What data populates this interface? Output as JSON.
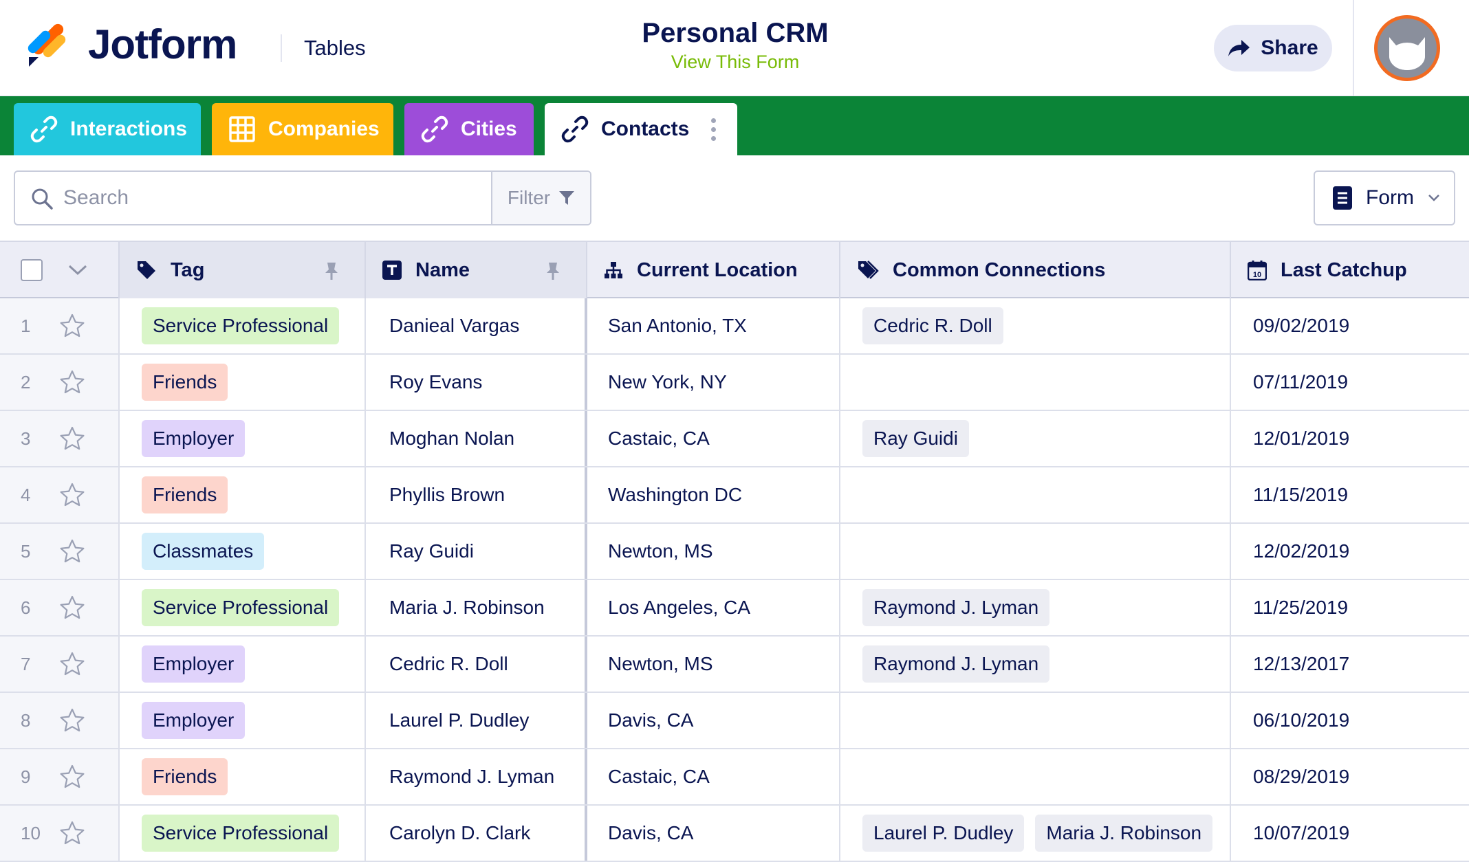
{
  "header": {
    "brand": "Jotform",
    "section": "Tables",
    "title": "Personal CRM",
    "view_link": "View This Form",
    "share_label": "Share"
  },
  "tabs": [
    {
      "label": "Interactions",
      "color": "#22c7dd",
      "icon": "link-icon"
    },
    {
      "label": "Companies",
      "color": "#ffb50a",
      "icon": "grid-icon"
    },
    {
      "label": "Cities",
      "color": "#9d4dd9",
      "icon": "link-icon"
    },
    {
      "label": "Contacts",
      "color": "#ffffff",
      "icon": "link-icon",
      "active": true
    }
  ],
  "toolbar": {
    "search_placeholder": "Search",
    "filter_label": "Filter",
    "form_label": "Form"
  },
  "columns": [
    {
      "label": "Tag",
      "icon": "tag-icon"
    },
    {
      "label": "Name",
      "icon": "text-type-icon"
    },
    {
      "label": "Current Location",
      "icon": "hierarchy-icon"
    },
    {
      "label": "Common Connections",
      "icon": "tags-icon"
    },
    {
      "label": "Last Catchup",
      "icon": "calendar-icon"
    }
  ],
  "calendar_icon_day": "10",
  "tag_colors": {
    "Service Professional": "#d9f5c8",
    "Friends": "#fdd5cc",
    "Employer": "#e0d3fb",
    "Classmates": "#d3eefb"
  },
  "rows": [
    {
      "num": "1",
      "tag": "Service Professional",
      "name": "Danieal Vargas",
      "location": "San Antonio, TX",
      "connections": [
        "Cedric R. Doll"
      ],
      "date": "09/02/2019"
    },
    {
      "num": "2",
      "tag": "Friends",
      "name": "Roy Evans",
      "location": "New York, NY",
      "connections": [],
      "date": "07/11/2019"
    },
    {
      "num": "3",
      "tag": "Employer",
      "name": "Moghan Nolan",
      "location": "Castaic, CA",
      "connections": [
        "Ray Guidi"
      ],
      "date": "12/01/2019"
    },
    {
      "num": "4",
      "tag": "Friends",
      "name": "Phyllis Brown",
      "location": "Washington DC",
      "connections": [],
      "date": "11/15/2019"
    },
    {
      "num": "5",
      "tag": "Classmates",
      "name": "Ray Guidi",
      "location": "Newton, MS",
      "connections": [],
      "date": "12/02/2019"
    },
    {
      "num": "6",
      "tag": "Service Professional",
      "name": "Maria J. Robinson",
      "location": "Los Angeles, CA",
      "connections": [
        "Raymond J. Lyman"
      ],
      "date": "11/25/2019"
    },
    {
      "num": "7",
      "tag": "Employer",
      "name": "Cedric R. Doll",
      "location": "Newton, MS",
      "connections": [
        "Raymond J. Lyman"
      ],
      "date": "12/13/2017"
    },
    {
      "num": "8",
      "tag": "Employer",
      "name": "Laurel P. Dudley",
      "location": "Davis, CA",
      "connections": [],
      "date": "06/10/2019"
    },
    {
      "num": "9",
      "tag": "Friends",
      "name": "Raymond J. Lyman",
      "location": "Castaic, CA",
      "connections": [],
      "date": "08/29/2019"
    },
    {
      "num": "10",
      "tag": "Service Professional",
      "name": "Carolyn D. Clark",
      "location": "Davis, CA",
      "connections": [
        "Laurel P. Dudley",
        "Maria J. Robinson"
      ],
      "date": "10/07/2019"
    }
  ]
}
